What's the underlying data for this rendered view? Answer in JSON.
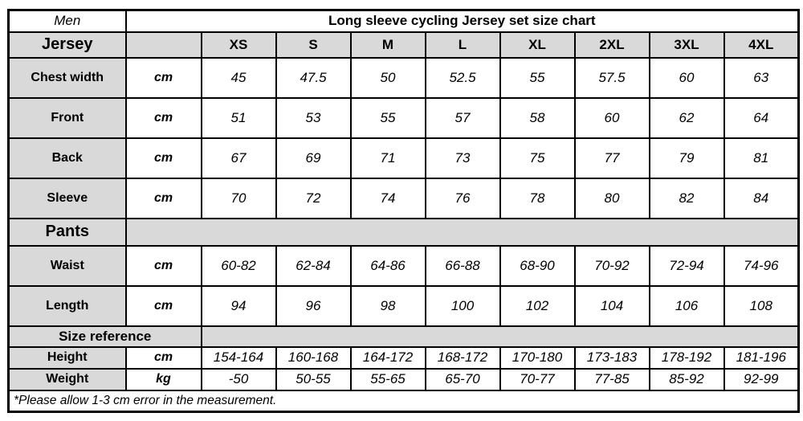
{
  "colors": {
    "header_bg": "#d9d9d9",
    "cell_bg": "#ffffff",
    "border": "#000000",
    "text": "#000000"
  },
  "chart_data": {
    "type": "table",
    "title": "Long sleeve cycling Jersey set size chart",
    "corner_label": "Men",
    "size_header_label": "Jersey",
    "size_header_unit": "",
    "columns": [
      "XS",
      "S",
      "M",
      "L",
      "XL",
      "2XL",
      "3XL",
      "4XL"
    ],
    "jersey_rows": [
      {
        "label": "Chest width",
        "unit": "cm",
        "values": [
          "45",
          "47.5",
          "50",
          "52.5",
          "55",
          "57.5",
          "60",
          "63"
        ]
      },
      {
        "label": "Front",
        "unit": "cm",
        "values": [
          "51",
          "53",
          "55",
          "57",
          "58",
          "60",
          "62",
          "64"
        ]
      },
      {
        "label": "Back",
        "unit": "cm",
        "values": [
          "67",
          "69",
          "71",
          "73",
          "75",
          "77",
          "79",
          "81"
        ]
      },
      {
        "label": "Sleeve",
        "unit": "cm",
        "values": [
          "70",
          "72",
          "74",
          "76",
          "78",
          "80",
          "82",
          "84"
        ]
      }
    ],
    "pants_label": "Pants",
    "pants_rows": [
      {
        "label": "Waist",
        "unit": "cm",
        "values": [
          "60-82",
          "62-84",
          "64-86",
          "66-88",
          "68-90",
          "70-92",
          "72-94",
          "74-96"
        ]
      },
      {
        "label": "Length",
        "unit": "cm",
        "values": [
          "94",
          "96",
          "98",
          "100",
          "102",
          "104",
          "106",
          "108"
        ]
      }
    ],
    "size_reference_label": "Size reference",
    "reference_rows": [
      {
        "label": "Height",
        "unit": "cm",
        "values": [
          "154-164",
          "160-168",
          "164-172",
          "168-172",
          "170-180",
          "173-183",
          "178-192",
          "181-196"
        ]
      },
      {
        "label": "Weight",
        "unit": "kg",
        "values": [
          "-50",
          "50-55",
          "55-65",
          "65-70",
          "70-77",
          "77-85",
          "85-92",
          "92-99"
        ]
      }
    ],
    "footnote": "*Please allow 1-3 cm error in the measurement."
  }
}
